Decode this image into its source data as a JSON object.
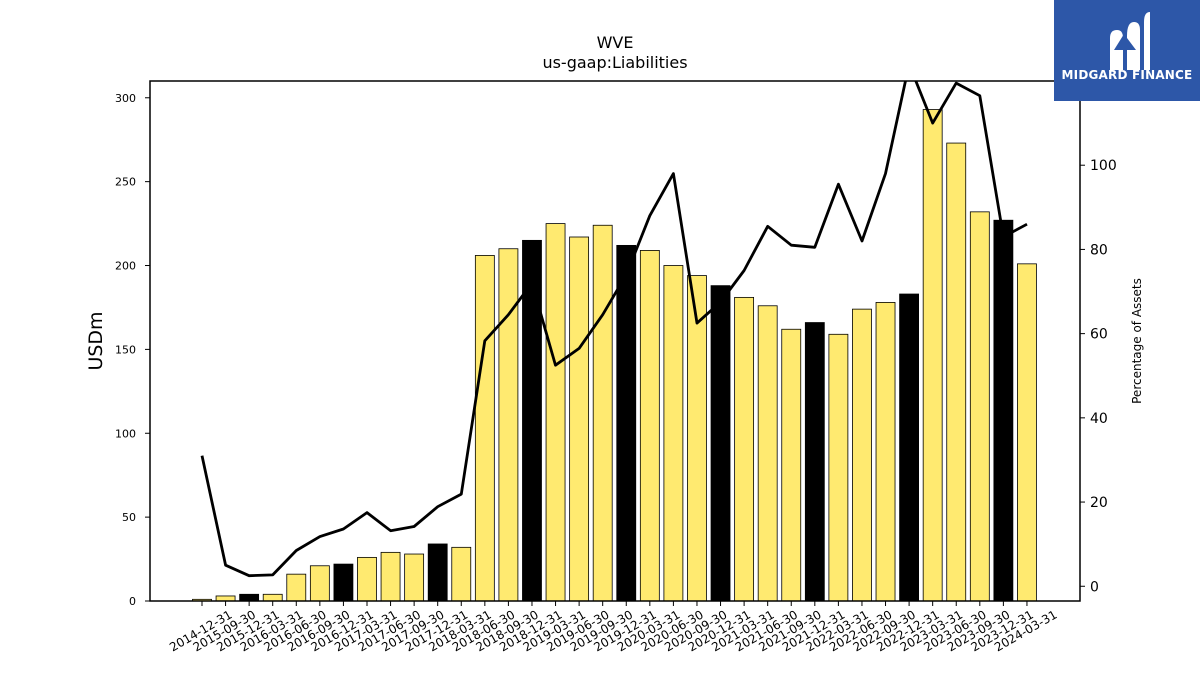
{
  "logo": {
    "text": "MIDGARD FINANCE",
    "icon": "midgard-m-logo-icon",
    "background": "#2d57a8"
  },
  "colors": {
    "bar_default": "#ffea70",
    "bar_highlight": "#000000",
    "line": "#000000"
  },
  "chart_data": {
    "type": "bar",
    "title": "WVE",
    "subtitle": "us-gaap:Liabilities",
    "ylabel": "USDm",
    "y2label": "Percentage of Assets",
    "ylim": [
      0,
      310
    ],
    "y2lim": [
      -3.5,
      120
    ],
    "yticks": [
      0,
      50,
      100,
      150,
      200,
      250,
      300
    ],
    "y2ticks": [
      0,
      20,
      40,
      60,
      80,
      100
    ],
    "categories": [
      "2014-12-31",
      "2015-09-30",
      "2015-12-31",
      "2016-03-31",
      "2016-06-30",
      "2016-09-30",
      "2016-12-31",
      "2017-03-31",
      "2017-06-30",
      "2017-09-30",
      "2017-12-31",
      "2018-03-31",
      "2018-06-30",
      "2018-09-30",
      "2018-12-31",
      "2019-03-31",
      "2019-06-30",
      "2019-09-30",
      "2019-12-31",
      "2020-03-31",
      "2020-06-30",
      "2020-09-30",
      "2020-12-31",
      "2021-03-31",
      "2021-06-30",
      "2021-09-30",
      "2021-12-31",
      "2022-03-31",
      "2022-06-30",
      "2022-09-30",
      "2022-12-31",
      "2023-03-31",
      "2023-06-30",
      "2023-09-30",
      "2023-12-31",
      "2024-03-31"
    ],
    "series": [
      {
        "type": "bar",
        "values": [
          1,
          3,
          4,
          4,
          16,
          21,
          22,
          26,
          29,
          28,
          34,
          32,
          206,
          210,
          215,
          225,
          217,
          224,
          212,
          209,
          200,
          194,
          188,
          181,
          176,
          162,
          166,
          159,
          174,
          178,
          183,
          293,
          273,
          232,
          227,
          201
        ],
        "highlight": [
          false,
          false,
          true,
          false,
          false,
          false,
          true,
          false,
          false,
          false,
          true,
          false,
          false,
          false,
          true,
          false,
          false,
          false,
          true,
          false,
          false,
          false,
          true,
          false,
          false,
          false,
          true,
          false,
          false,
          false,
          true,
          false,
          false,
          false,
          true,
          false
        ]
      },
      {
        "type": "line",
        "axis": "right",
        "values": [
          31,
          5,
          2.5,
          2.7,
          8.5,
          11.8,
          13.6,
          17.5,
          13.2,
          14.2,
          18.9,
          21.9,
          58.3,
          64.5,
          72,
          52.5,
          56.5,
          64.5,
          74,
          88,
          98,
          62.5,
          67.5,
          75,
          85.5,
          81,
          80.5,
          95.5,
          82,
          98,
          124,
          110,
          119.5,
          116.5,
          83,
          86
        ]
      }
    ]
  }
}
